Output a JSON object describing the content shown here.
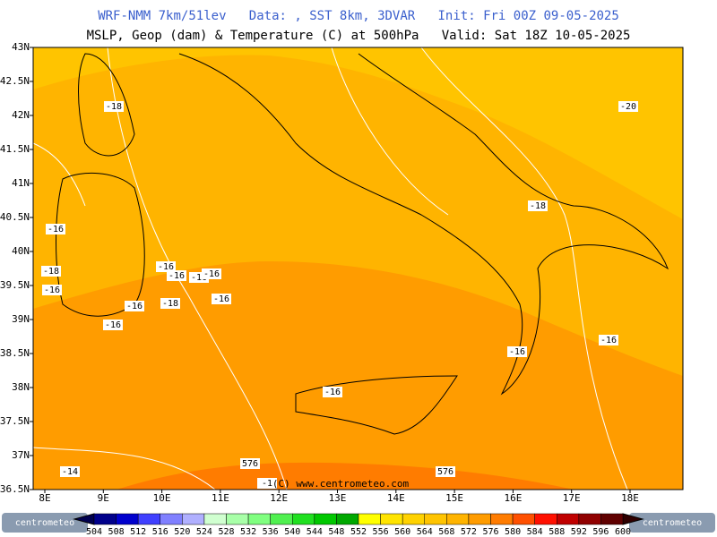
{
  "header": {
    "line1": "WRF-NMM 7km/51lev   Data: , SST 8km, 3DVAR   Init: Fri 00Z 09-05-2025",
    "line2": "MSLP, Geop (dam) & Temperature (C) at 500hPa   Valid: Sat 18Z 10-05-2025"
  },
  "lat_labels": [
    "43N",
    "42.5N",
    "42N",
    "41.5N",
    "41N",
    "40.5N",
    "40N",
    "39.5N",
    "39N",
    "38.5N",
    "38N",
    "37.5N",
    "37N",
    "36.5N"
  ],
  "lon_labels": [
    "8E",
    "9E",
    "10E",
    "11E",
    "12E",
    "13E",
    "14E",
    "15E",
    "16E",
    "17E",
    "18E"
  ],
  "contour_labels": [
    "-18",
    "-20",
    "-16",
    "-18",
    "-18",
    "-16",
    "-16",
    "-16",
    "-16",
    "-16",
    "-16",
    "-16",
    "-18",
    "-16",
    "-16",
    "-16",
    "-16",
    "576",
    "576",
    "-14",
    "-1"
  ],
  "credit": "(C) www.centrometeo.com",
  "logo": "centrometeo",
  "colorbar": {
    "labels": [
      504,
      508,
      512,
      516,
      520,
      524,
      528,
      532,
      536,
      540,
      544,
      548,
      552,
      556,
      560,
      564,
      568,
      572,
      576,
      580,
      584,
      588,
      592,
      596,
      600
    ],
    "colors": [
      "#00008b",
      "#0000cd",
      "#4040ff",
      "#8080ff",
      "#b0b0ff",
      "#d0ffd0",
      "#a8ffa8",
      "#80ff80",
      "#50f050",
      "#20e020",
      "#00c800",
      "#00a800",
      "#ffff00",
      "#ffe400",
      "#ffd200",
      "#ffc400",
      "#ffb400",
      "#ff9c00",
      "#ff7c00",
      "#ff5000",
      "#ff1000",
      "#c00000",
      "#900000",
      "#600000"
    ]
  }
}
